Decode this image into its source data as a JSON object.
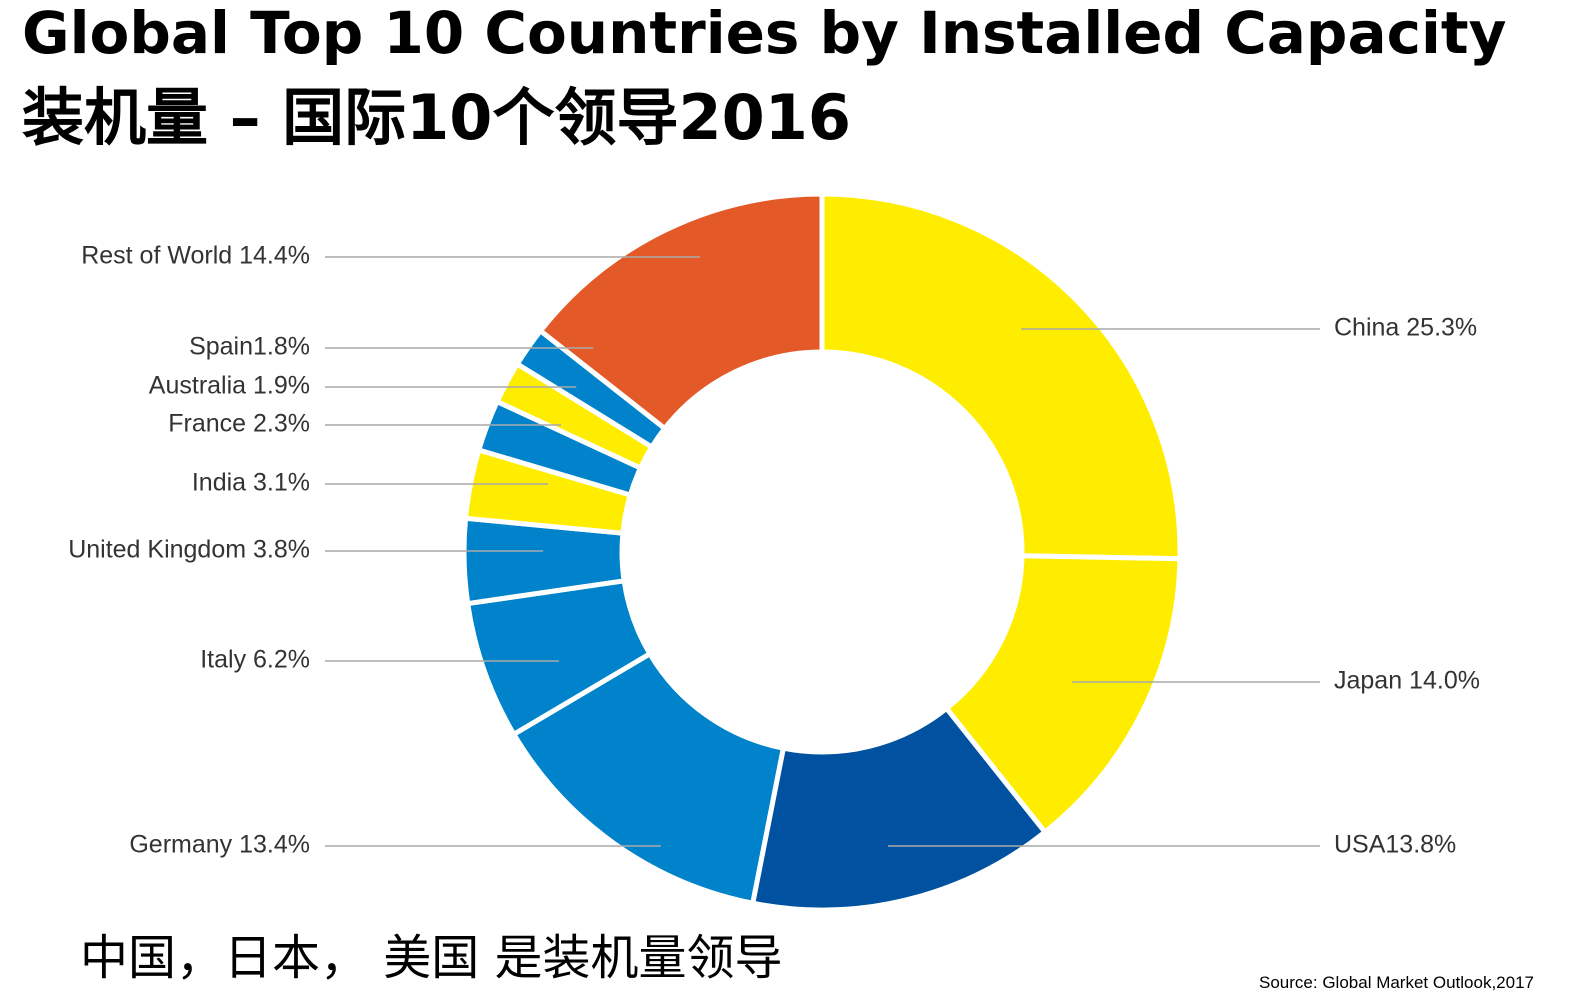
{
  "header": {
    "title_en": "Global Top 10 Countries by Installed Capacity",
    "title_zh": "装机量 – 国际10个领导2016"
  },
  "footer": {
    "note": "中国，日本， 美国 是装机量领导",
    "source": "Source: Global Market Outlook,2017"
  },
  "chart_data": {
    "type": "pie",
    "variant": "donut",
    "title": "",
    "slices": [
      {
        "name": "China",
        "value": 25.3,
        "label": "China 25.3%",
        "color": "#FFED00"
      },
      {
        "name": "Japan",
        "value": 14.0,
        "label": "Japan 14.0%",
        "color": "#FFED00"
      },
      {
        "name": "USA",
        "value": 13.8,
        "label": "USA13.8%",
        "color": "#0051A0"
      },
      {
        "name": "Germany",
        "value": 13.4,
        "label": "Germany 13.4%",
        "color": "#0083CA"
      },
      {
        "name": "Italy",
        "value": 6.2,
        "label": "Italy 6.2%",
        "color": "#0083CA"
      },
      {
        "name": "United Kingdom",
        "value": 3.8,
        "label": "United Kingdom 3.8%",
        "color": "#0083CA"
      },
      {
        "name": "India",
        "value": 3.1,
        "label": "India 3.1%",
        "color": "#FFED00"
      },
      {
        "name": "France",
        "value": 2.3,
        "label": "France 2.3%",
        "color": "#0083CA"
      },
      {
        "name": "Australia",
        "value": 1.9,
        "label": "Australia 1.9%",
        "color": "#FFED00"
      },
      {
        "name": "Spain",
        "value": 1.8,
        "label": "Spain1.8%",
        "color": "#0083CA"
      },
      {
        "name": "Rest of World",
        "value": 14.4,
        "label": "Rest of World 14.4%",
        "color": "#E35A28"
      }
    ]
  }
}
